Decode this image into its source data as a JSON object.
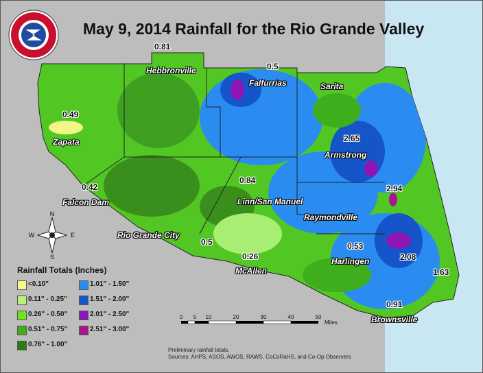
{
  "title": "May 9, 2014 Rainfall for the Rio Grande Valley",
  "logo": {
    "arc_text": "NATIONAL WEATHER SERVICE",
    "icon": "nws-logo-icon"
  },
  "cities": [
    {
      "name": "Hebbronville"
    },
    {
      "name": "Falfurrias"
    },
    {
      "name": "Sarita"
    },
    {
      "name": "Zapata"
    },
    {
      "name": "Armstrong"
    },
    {
      "name": "Falcon Dam"
    },
    {
      "name": "Linn/San Manuel"
    },
    {
      "name": "Raymondville"
    },
    {
      "name": "Rio Grande City"
    },
    {
      "name": "Harlingen"
    },
    {
      "name": "McAllen"
    },
    {
      "name": "Brownsville"
    }
  ],
  "values": [
    "0.81",
    "0.5",
    "0.49",
    "2.65",
    "0.42",
    "0.84",
    "2.94",
    "0.5",
    "0.53",
    "0.26",
    "2.08",
    "1.63",
    "0.91"
  ],
  "compass": {
    "n": "N",
    "s": "S",
    "e": "E",
    "w": "W"
  },
  "legend": {
    "title": "Rainfall Totals (Inches)",
    "items": [
      {
        "label": "<0.10\"",
        "color": "#f7f78a"
      },
      {
        "label": "0.11\" - 0.25\"",
        "color": "#b7f07a"
      },
      {
        "label": "0.26\" - 0.50\"",
        "color": "#6fe51f"
      },
      {
        "label": "0.51\" - 0.75\"",
        "color": "#3fae1c"
      },
      {
        "label": "0.76\" - 1.00\"",
        "color": "#2e7a16"
      },
      {
        "label": "1.01\" - 1.50\"",
        "color": "#2a8cf0"
      },
      {
        "label": "1.51\" - 2.00\"",
        "color": "#1555c9"
      },
      {
        "label": "2.01\" - 2.50\"",
        "color": "#8e16b5"
      },
      {
        "label": "2.51\" - 3.00\"",
        "color": "#a8168f"
      }
    ]
  },
  "scale": {
    "ticks": [
      "0",
      "5",
      "10",
      "20",
      "30",
      "40",
      "50"
    ],
    "unit": "Miles"
  },
  "notes": {
    "line1": "Preliminary rainfall totals.",
    "line2": "Sources: AHPS, ASOS, AWOS, RAWS, CoCoRaHS, and Co-Op Observers"
  }
}
